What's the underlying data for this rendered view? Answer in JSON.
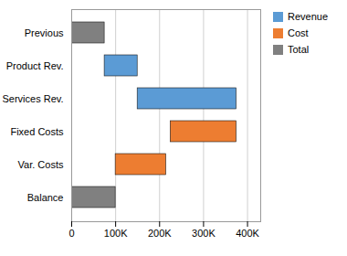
{
  "chart_data": {
    "type": "waterfall",
    "orientation": "horizontal",
    "categories": [
      "Previous",
      "Product Rev.",
      "Services Rev.",
      "Fixed Costs",
      "Var. Costs",
      "Balance"
    ],
    "series": [
      {
        "name": "Revenue",
        "color": "#5b9bd5",
        "starts": [
          null,
          75000,
          150000,
          null,
          null,
          null
        ],
        "values": [
          null,
          75000,
          225000,
          null,
          null,
          null
        ]
      },
      {
        "name": "Cost",
        "color": "#ed7d31",
        "starts": [
          null,
          null,
          null,
          225000,
          100000,
          null
        ],
        "values": [
          null,
          null,
          null,
          150000,
          115000,
          null
        ]
      },
      {
        "name": "Total",
        "color": "#808080",
        "starts": [
          0,
          null,
          null,
          null,
          null,
          0
        ],
        "values": [
          75000,
          null,
          null,
          null,
          null,
          100000
        ]
      }
    ],
    "xlim": [
      0,
      430000
    ],
    "xticks": [
      0,
      {
        "value": 100000,
        "label": "100K"
      },
      {
        "value": 200000,
        "label": "200K"
      },
      {
        "value": 300000,
        "label": "300K"
      },
      {
        "value": 400000,
        "label": "400K"
      }
    ],
    "grid": true,
    "legend": "right"
  }
}
